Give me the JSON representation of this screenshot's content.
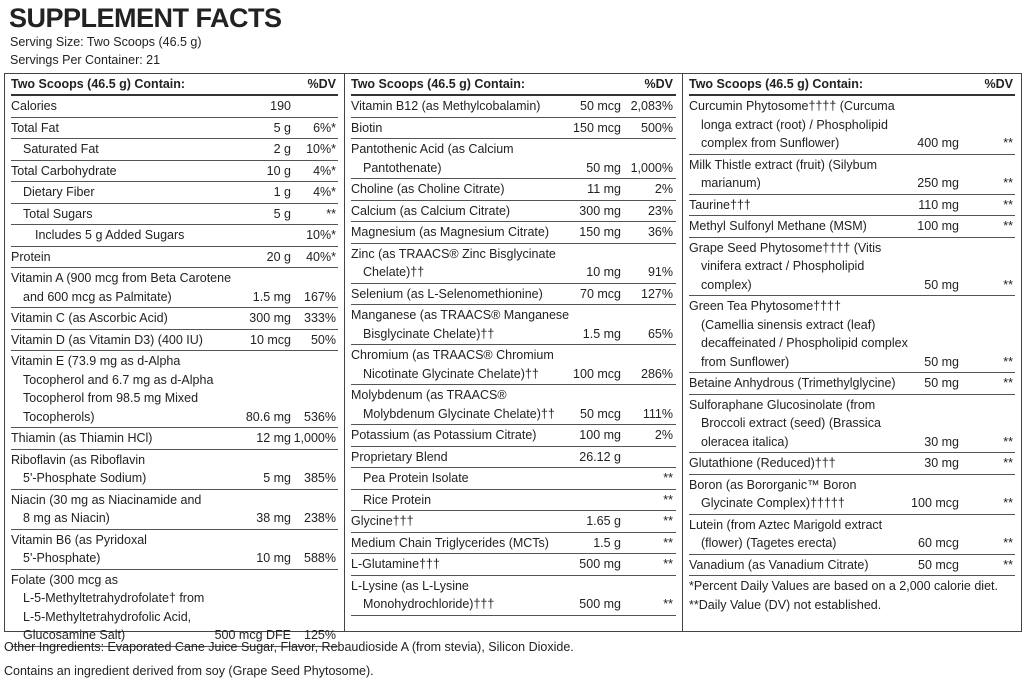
{
  "header": {
    "title": "SUPPLEMENT FACTS",
    "serving_size": "Serving Size: Two Scoops (46.5 g)",
    "servings": "Servings Per Container: 21"
  },
  "columns": [
    {
      "heading": "Two Scoops (46.5 g) Contain:",
      "dv_heading": "%DV",
      "rows": [
        {
          "name": [
            "Calories"
          ],
          "amount": "190"
        },
        {
          "name": [
            "Total Fat"
          ],
          "amount": "5 g",
          "dv": "6%*"
        },
        {
          "name": [
            "Saturated Fat"
          ],
          "amount": "2 g",
          "dv": "10%*",
          "indent": 1
        },
        {
          "name": [
            "Total Carbohydrate"
          ],
          "amount": "10 g",
          "dv": "4%*"
        },
        {
          "name": [
            "Dietary Fiber"
          ],
          "amount": "1 g",
          "dv": "4%*",
          "indent": 1
        },
        {
          "name": [
            "Total Sugars"
          ],
          "amount": "5 g",
          "dv": "**",
          "indent": 1
        },
        {
          "name": [
            "Includes 5 g Added Sugars"
          ],
          "dv": "10%*",
          "indent": 2
        },
        {
          "name": [
            "Protein"
          ],
          "amount": "20 g",
          "dv": "40%*"
        },
        {
          "name": [
            "Vitamin A (900 mcg from Beta Carotene",
            "and 600 mcg as Palmitate)"
          ],
          "amount": "1.5 mg",
          "dv": "167%"
        },
        {
          "name": [
            "Vitamin C (as Ascorbic Acid)"
          ],
          "amount": "300 mg",
          "dv": "333%"
        },
        {
          "name": [
            "Vitamin D (as Vitamin D3) (400 IU)"
          ],
          "amount": "10 mcg",
          "dv": "50%"
        },
        {
          "name": [
            "Vitamin E (73.9 mg as d-Alpha",
            "Tocopherol and 6.7 mg as d-Alpha",
            "Tocopherol from 98.5 mg Mixed",
            "Tocopherols)"
          ],
          "amount": "80.6 mg",
          "dv": "536%"
        },
        {
          "name": [
            "Thiamin (as Thiamin HCl)"
          ],
          "amount": "12 mg",
          "dv": "1,000%"
        },
        {
          "name": [
            "Riboflavin (as Riboflavin",
            "5'-Phosphate Sodium)"
          ],
          "amount": "5 mg",
          "dv": "385%"
        },
        {
          "name": [
            "Niacin (30 mg as Niacinamide and",
            "8 mg as Niacin)"
          ],
          "amount": "38 mg",
          "dv": "238%"
        },
        {
          "name": [
            "Vitamin B6 (as Pyridoxal",
            "5'-Phosphate)"
          ],
          "amount": "10 mg",
          "dv": "588%"
        },
        {
          "name": [
            "Folate (300 mcg as",
            "L-5-Methyltetrahydrofolate† from",
            "L-5-Methyltetrahydrofolic Acid,",
            "Glucosamine Salt)"
          ],
          "amount": "500 mcg DFE",
          "dv": "125%"
        }
      ]
    },
    {
      "heading": "Two Scoops (46.5 g) Contain:",
      "dv_heading": "%DV",
      "rows": [
        {
          "name": [
            "Vitamin B12 (as Methylcobalamin)"
          ],
          "amount": "50 mcg",
          "dv": "2,083%"
        },
        {
          "name": [
            "Biotin"
          ],
          "amount": "150 mcg",
          "dv": "500%"
        },
        {
          "name": [
            "Pantothenic Acid (as Calcium",
            "Pantothenate)"
          ],
          "amount": "50 mg",
          "dv": "1,000%"
        },
        {
          "name": [
            "Choline (as Choline Citrate)"
          ],
          "amount": "11 mg",
          "dv": "2%"
        },
        {
          "name": [
            "Calcium (as Calcium Citrate)"
          ],
          "amount": "300 mg",
          "dv": "23%"
        },
        {
          "name": [
            "Magnesium (as Magnesium Citrate)"
          ],
          "amount": "150 mg",
          "dv": "36%"
        },
        {
          "name": [
            "Zinc (as TRAACS® Zinc Bisglycinate",
            "Chelate)††"
          ],
          "amount": "10 mg",
          "dv": "91%"
        },
        {
          "name": [
            "Selenium (as L-Selenomethionine)"
          ],
          "amount": "70 mcg",
          "dv": "127%"
        },
        {
          "name": [
            "Manganese (as TRAACS® Manganese",
            "Bisglycinate Chelate)††"
          ],
          "amount": "1.5 mg",
          "dv": "65%"
        },
        {
          "name": [
            "Chromium (as TRAACS® Chromium",
            "Nicotinate Glycinate Chelate)††"
          ],
          "amount": "100 mcg",
          "dv": "286%"
        },
        {
          "name": [
            "Molybdenum (as TRAACS®",
            "Molybdenum Glycinate Chelate)††"
          ],
          "amount": "50 mcg",
          "dv": "111%"
        },
        {
          "name": [
            "Potassium (as Potassium Citrate)"
          ],
          "amount": "100 mg",
          "dv": "2%"
        },
        {
          "name": [
            "Proprietary Blend"
          ],
          "amount": "26.12 g"
        },
        {
          "name": [
            "Pea Protein Isolate"
          ],
          "dv": "**",
          "indent": 1
        },
        {
          "name": [
            "Rice Protein"
          ],
          "dv": "**",
          "indent": 1
        },
        {
          "name": [
            "Glycine†††"
          ],
          "amount": "1.65 g",
          "dv": "**"
        },
        {
          "name": [
            "Medium Chain Triglycerides (MCTs)"
          ],
          "amount": "1.5 g",
          "dv": "**"
        },
        {
          "name": [
            "L-Glutamine†††"
          ],
          "amount": "500 mg",
          "dv": "**"
        },
        {
          "name": [
            "L-Lysine (as L-Lysine",
            "Monohydrochloride)†††"
          ],
          "amount": "500 mg",
          "dv": "**"
        }
      ]
    },
    {
      "heading": "Two Scoops (46.5 g) Contain:",
      "dv_heading": "%DV",
      "rows": [
        {
          "name": [
            "Curcumin Phytosome†††† (Curcuma",
            "longa extract (root) / Phospholipid",
            "complex from Sunflower)"
          ],
          "amount": "400 mg",
          "dv": "**"
        },
        {
          "name": [
            "Milk Thistle extract (fruit) (Silybum",
            "marianum)"
          ],
          "amount": "250 mg",
          "dv": "**"
        },
        {
          "name": [
            "Taurine†††"
          ],
          "amount": "110 mg",
          "dv": "**"
        },
        {
          "name": [
            "Methyl Sulfonyl Methane (MSM)"
          ],
          "amount": "100 mg",
          "dv": "**"
        },
        {
          "name": [
            "Grape Seed Phytosome†††† (Vitis",
            "vinifera extract / Phospholipid",
            "complex)"
          ],
          "amount": "50 mg",
          "dv": "**"
        },
        {
          "name": [
            "Green Tea Phytosome††††",
            "(Camellia sinensis extract (leaf)",
            "decaffeinated / Phospholipid complex",
            "from Sunflower)"
          ],
          "amount": "50 mg",
          "dv": "**"
        },
        {
          "name": [
            "Betaine Anhydrous (Trimethylglycine)"
          ],
          "amount": "50 mg",
          "dv": "**"
        },
        {
          "name": [
            "Sulforaphane Glucosinolate (from",
            "Broccoli extract (seed) (Brassica",
            "oleracea italica)"
          ],
          "amount": "30 mg",
          "dv": "**"
        },
        {
          "name": [
            "Glutathione (Reduced)†††"
          ],
          "amount": "30 mg",
          "dv": "**"
        },
        {
          "name": [
            "Boron (as Bororganic™ Boron",
            "Glycinate Complex)†††††"
          ],
          "amount": "100 mcg",
          "dv": "**"
        },
        {
          "name": [
            "Lutein (from Aztec Marigold extract",
            "(flower) (Tagetes erecta)"
          ],
          "amount": "60 mcg",
          "dv": "**"
        },
        {
          "name": [
            "Vanadium (as Vanadium Citrate)"
          ],
          "amount": "50 mcg",
          "dv": "**"
        }
      ],
      "footnotes": [
        "*Percent Daily Values are based on a 2,000 calorie diet.",
        "**Daily Value (DV) not established."
      ]
    }
  ],
  "footer": [
    "Other Ingredients: Evaporated Cane Juice Sugar, Flavor, Rebaudioside A (from stevia), Silicon Dioxide.",
    "Contains an ingredient derived from soy (Grape Seed Phytosome)."
  ]
}
